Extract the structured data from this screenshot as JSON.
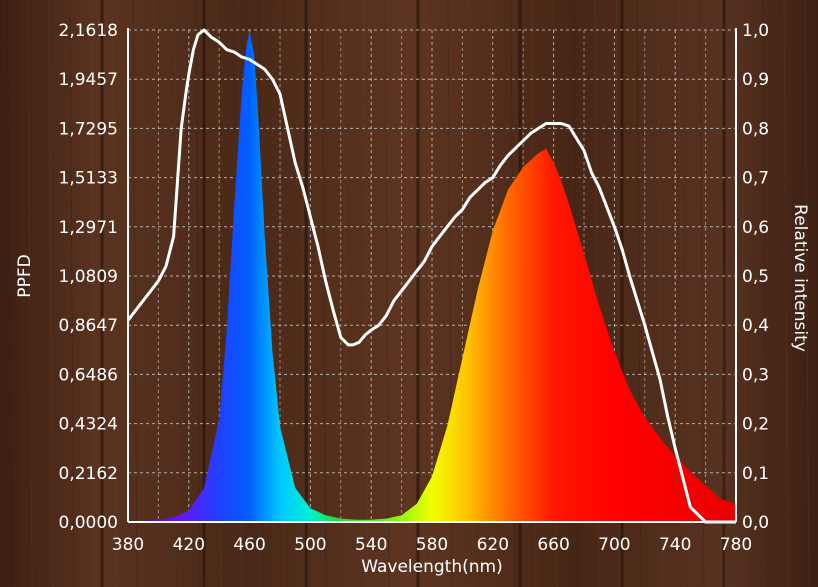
{
  "chart_data": {
    "type": "area",
    "xlabel": "Wavelength(nm)",
    "ylabel_left": "PPFD",
    "ylabel_right": "Relative intensity",
    "x_ticks": [
      "380",
      "420",
      "460",
      "500",
      "540",
      "580",
      "620",
      "660",
      "700",
      "740",
      "780"
    ],
    "x_tick_values": [
      380,
      420,
      460,
      500,
      540,
      580,
      620,
      660,
      700,
      740,
      780
    ],
    "y_left_ticks": [
      "0,0000",
      "0,2162",
      "0,4324",
      "0,6486",
      "0,8647",
      "1,0809",
      "1,2971",
      "1,5133",
      "1,7295",
      "1,9457",
      "2,1618"
    ],
    "y_right_ticks": [
      "0,0",
      "0,1",
      "0,2",
      "0,3",
      "0,4",
      "0,5",
      "0,6",
      "0,7",
      "0,8",
      "0,9",
      "1,0"
    ],
    "xlim": [
      380,
      780
    ],
    "ylim_left": [
      0,
      2.1618
    ],
    "ylim_right": [
      0,
      1.0
    ],
    "grid": true,
    "series": [
      {
        "axis": "left",
        "style": "spectrum-filled-area",
        "x": [
          380,
          390,
          400,
          410,
          420,
          430,
          440,
          445,
          450,
          455,
          458,
          460,
          463,
          466,
          470,
          475,
          480,
          490,
          500,
          510,
          520,
          530,
          540,
          550,
          560,
          570,
          580,
          590,
          600,
          610,
          620,
          630,
          640,
          650,
          655,
          660,
          665,
          670,
          680,
          690,
          700,
          710,
          720,
          730,
          740,
          750,
          760,
          770,
          780
        ],
        "y": [
          0,
          0.005,
          0.01,
          0.02,
          0.05,
          0.15,
          0.45,
          0.85,
          1.4,
          1.9,
          2.1,
          2.16,
          2.05,
          1.75,
          1.25,
          0.75,
          0.42,
          0.15,
          0.06,
          0.03,
          0.015,
          0.01,
          0.01,
          0.015,
          0.03,
          0.08,
          0.2,
          0.42,
          0.72,
          1.02,
          1.28,
          1.46,
          1.56,
          1.62,
          1.64,
          1.58,
          1.5,
          1.4,
          1.18,
          0.95,
          0.75,
          0.58,
          0.46,
          0.37,
          0.29,
          0.22,
          0.16,
          0.1,
          0.08
        ]
      },
      {
        "axis": "right",
        "style": "white-line",
        "x": [
          380,
          385,
          390,
          395,
          400,
          405,
          410,
          415,
          418,
          420,
          423,
          426,
          430,
          435,
          440,
          445,
          450,
          455,
          460,
          465,
          470,
          475,
          480,
          485,
          490,
          495,
          500,
          505,
          510,
          515,
          520,
          525,
          528,
          532,
          536,
          540,
          545,
          550,
          555,
          560,
          565,
          570,
          575,
          580,
          585,
          590,
          595,
          600,
          605,
          610,
          615,
          620,
          625,
          630,
          635,
          640,
          645,
          650,
          655,
          660,
          665,
          670,
          675,
          680,
          685,
          690,
          695,
          700,
          705,
          710,
          715,
          720,
          725,
          730,
          735,
          740,
          745,
          750,
          760,
          770,
          780
        ],
        "y": [
          0.41,
          0.43,
          0.45,
          0.47,
          0.49,
          0.52,
          0.58,
          0.8,
          0.87,
          0.91,
          0.96,
          0.99,
          1.0,
          0.985,
          0.975,
          0.96,
          0.955,
          0.945,
          0.94,
          0.93,
          0.92,
          0.9,
          0.87,
          0.8,
          0.73,
          0.68,
          0.62,
          0.56,
          0.49,
          0.43,
          0.375,
          0.36,
          0.36,
          0.365,
          0.38,
          0.39,
          0.4,
          0.42,
          0.45,
          0.47,
          0.49,
          0.51,
          0.53,
          0.56,
          0.58,
          0.6,
          0.62,
          0.635,
          0.66,
          0.675,
          0.69,
          0.7,
          0.725,
          0.745,
          0.76,
          0.775,
          0.79,
          0.8,
          0.81,
          0.81,
          0.81,
          0.805,
          0.78,
          0.755,
          0.71,
          0.68,
          0.64,
          0.6,
          0.555,
          0.5,
          0.45,
          0.4,
          0.345,
          0.29,
          0.215,
          0.15,
          0.09,
          0.03,
          0.0,
          0.0,
          0.0
        ]
      }
    ]
  }
}
